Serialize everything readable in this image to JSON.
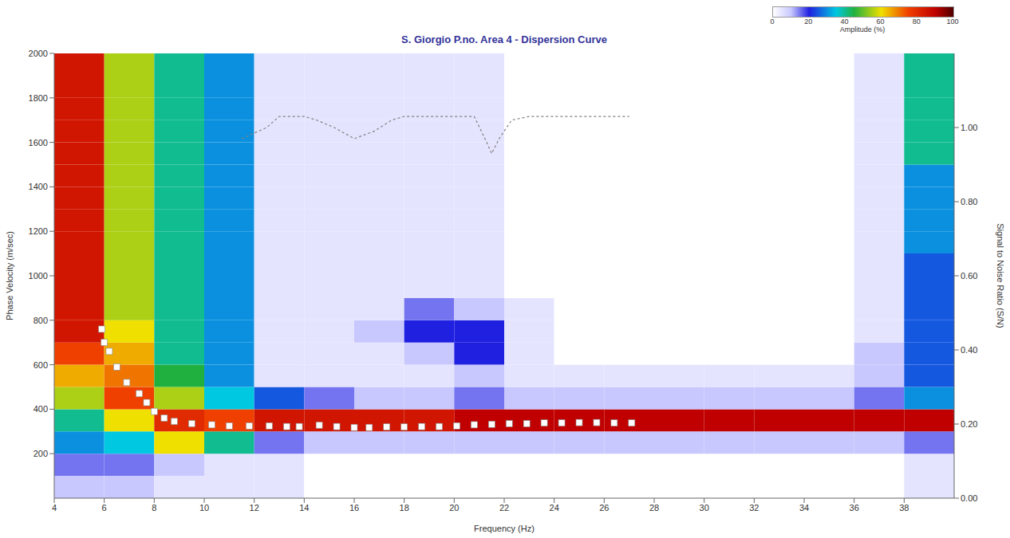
{
  "chart_data": {
    "type": "heatmap",
    "title": "S. Giorgio P.no. Area 4 - Dispersion Curve",
    "x_label": "Frequency (Hz)",
    "y_label": "Phase Velocity (m/sec)",
    "y2_label": "Signal to Noise Ratio (S/N)",
    "xlim": [
      4,
      40
    ],
    "xticks": [
      4,
      6,
      8,
      10,
      12,
      14,
      16,
      18,
      20,
      22,
      24,
      26,
      28,
      30,
      32,
      34,
      36,
      38
    ],
    "ylim": [
      0,
      2000
    ],
    "yticks": [
      200,
      400,
      600,
      800,
      1000,
      1200,
      1400,
      1600,
      1800,
      2000
    ],
    "y2lim": [
      0,
      1.2
    ],
    "y2ticks": [
      {
        "value": 0,
        "label": "0.00"
      },
      {
        "value": 0.2,
        "label": "0.20"
      },
      {
        "value": 0.4,
        "label": "0.40"
      },
      {
        "value": 0.6,
        "label": "0.60"
      },
      {
        "value": 0.8,
        "label": "0.80"
      },
      {
        "value": 1,
        "label": "1.00"
      }
    ],
    "grid": false,
    "heatmap": {
      "x_edges": [
        4,
        6,
        8,
        10,
        12,
        14,
        16,
        18,
        20,
        22,
        24,
        26,
        28,
        30,
        32,
        34,
        36,
        38,
        40
      ],
      "y_edges": [
        0,
        100,
        200,
        300,
        400,
        500,
        600,
        700,
        800,
        900,
        1000,
        1100,
        1200,
        1300,
        1400,
        1500,
        1600,
        1700,
        1800,
        1900,
        2000
      ],
      "cells": [
        [
          10,
          10,
          5,
          5,
          5,
          0,
          0,
          0,
          0,
          0,
          0,
          0,
          0,
          0,
          0,
          0,
          0,
          5
        ],
        [
          15,
          15,
          10,
          5,
          5,
          0,
          0,
          0,
          0,
          0,
          0,
          0,
          0,
          0,
          0,
          0,
          0,
          5
        ],
        [
          30,
          35,
          60,
          40,
          15,
          10,
          10,
          10,
          10,
          10,
          10,
          10,
          10,
          10,
          10,
          10,
          10,
          15
        ],
        [
          40,
          60,
          80,
          75,
          85,
          85,
          85,
          85,
          90,
          90,
          90,
          90,
          90,
          90,
          90,
          90,
          90,
          90
        ],
        [
          55,
          75,
          55,
          35,
          25,
          15,
          10,
          10,
          15,
          10,
          10,
          10,
          10,
          10,
          10,
          10,
          15,
          30
        ],
        [
          65,
          70,
          45,
          30,
          5,
          5,
          5,
          5,
          10,
          5,
          5,
          5,
          5,
          5,
          5,
          5,
          10,
          25
        ],
        [
          75,
          65,
          40,
          30,
          5,
          5,
          5,
          10,
          20,
          5,
          0,
          0,
          0,
          0,
          0,
          0,
          10,
          25
        ],
        [
          85,
          60,
          40,
          30,
          5,
          5,
          10,
          20,
          20,
          5,
          0,
          0,
          0,
          0,
          0,
          0,
          5,
          25
        ],
        [
          85,
          55,
          40,
          30,
          5,
          5,
          5,
          15,
          10,
          5,
          0,
          0,
          0,
          0,
          0,
          0,
          5,
          25
        ],
        [
          85,
          55,
          40,
          30,
          5,
          5,
          5,
          5,
          5,
          0,
          0,
          0,
          0,
          0,
          0,
          0,
          5,
          25
        ],
        [
          85,
          55,
          40,
          30,
          5,
          5,
          5,
          5,
          5,
          0,
          0,
          0,
          0,
          0,
          0,
          0,
          5,
          25
        ],
        [
          85,
          55,
          40,
          30,
          5,
          5,
          5,
          5,
          5,
          0,
          0,
          0,
          0,
          0,
          0,
          0,
          5,
          30
        ],
        [
          85,
          55,
          40,
          30,
          5,
          5,
          5,
          5,
          5,
          0,
          0,
          0,
          0,
          0,
          0,
          0,
          5,
          30
        ],
        [
          85,
          55,
          40,
          30,
          5,
          5,
          5,
          5,
          5,
          0,
          0,
          0,
          0,
          0,
          0,
          0,
          5,
          30
        ],
        [
          85,
          55,
          40,
          30,
          5,
          5,
          5,
          5,
          5,
          0,
          0,
          0,
          0,
          0,
          0,
          0,
          5,
          30
        ],
        [
          85,
          55,
          40,
          30,
          5,
          5,
          5,
          5,
          5,
          0,
          0,
          0,
          0,
          0,
          0,
          0,
          5,
          40
        ],
        [
          85,
          55,
          40,
          30,
          5,
          5,
          5,
          5,
          5,
          0,
          0,
          0,
          0,
          0,
          0,
          0,
          5,
          40
        ],
        [
          85,
          55,
          40,
          30,
          5,
          5,
          5,
          5,
          5,
          0,
          0,
          0,
          0,
          0,
          0,
          0,
          5,
          40
        ],
        [
          85,
          55,
          40,
          30,
          5,
          5,
          5,
          5,
          5,
          0,
          0,
          0,
          0,
          0,
          0,
          0,
          5,
          40
        ],
        [
          85,
          55,
          40,
          30,
          5,
          5,
          5,
          5,
          5,
          0,
          0,
          0,
          0,
          0,
          0,
          0,
          5,
          40
        ]
      ],
      "colorbar": {
        "label": "Amplitude (%)",
        "range": [
          0,
          100
        ],
        "ticks": [
          0,
          20,
          40,
          60,
          80,
          100
        ]
      }
    },
    "series": [
      {
        "type": "scatter",
        "marker": "square",
        "color": "#ffffff",
        "x": [
          5.9,
          6.0,
          6.2,
          6.5,
          6.9,
          7.4,
          7.7,
          8.0,
          8.4,
          8.8,
          9.5,
          10.3,
          11.0,
          11.8,
          12.6,
          13.3,
          13.8,
          14.6,
          15.3,
          16.0,
          16.6,
          17.3,
          18.0,
          18.7,
          19.4,
          20.1,
          20.8,
          21.5,
          22.2,
          22.9,
          23.6,
          24.3,
          25.0,
          25.7,
          26.4,
          27.1
        ],
        "values": [
          760,
          700,
          660,
          590,
          520,
          470,
          430,
          390,
          360,
          345,
          335,
          330,
          325,
          325,
          325,
          322,
          322,
          328,
          322,
          318,
          318,
          320,
          320,
          322,
          322,
          325,
          330,
          332,
          335,
          335,
          338,
          338,
          340,
          340,
          338,
          338
        ]
      },
      {
        "type": "line",
        "line_style": "dashed",
        "axis": "y2",
        "color": "#808080",
        "x": [
          11.5,
          12.5,
          13,
          14,
          14.5,
          15.2,
          16,
          16.8,
          17.5,
          18,
          20.8,
          21.3,
          21.5,
          21.8,
          22.3,
          23,
          27
        ],
        "values": [
          0.97,
          1.0,
          1.03,
          1.03,
          1.02,
          1.0,
          0.97,
          0.99,
          1.02,
          1.03,
          1.03,
          0.96,
          0.93,
          0.97,
          1.02,
          1.03,
          1.03
        ]
      }
    ]
  }
}
